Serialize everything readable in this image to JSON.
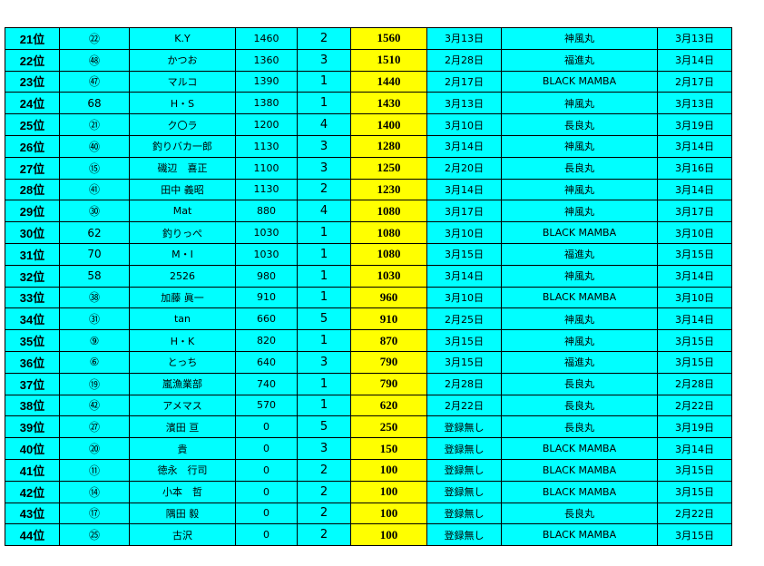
{
  "colors": {
    "cell": "#00ffff",
    "total": "#ffff00"
  },
  "rows": [
    [
      "21位",
      "㉒",
      "K.Y",
      "1460",
      "2",
      "1560",
      "3月13日",
      "神風丸",
      "3月13日"
    ],
    [
      "22位",
      "㊽",
      "かつお",
      "1360",
      "3",
      "1510",
      "2月28日",
      "福進丸",
      "3月14日"
    ],
    [
      "23位",
      "㊼",
      "マルコ",
      "1390",
      "1",
      "1440",
      "2月17日",
      "BLACK MAMBA",
      "2月17日"
    ],
    [
      "24位",
      "68",
      "H・S",
      "1380",
      "1",
      "1430",
      "3月13日",
      "神風丸",
      "3月13日"
    ],
    [
      "25位",
      "㉑",
      "ク〇ラ",
      "1200",
      "4",
      "1400",
      "3月10日",
      "長良丸",
      "3月19日"
    ],
    [
      "26位",
      "㊵",
      "釣りバカ一郎",
      "1130",
      "3",
      "1280",
      "3月14日",
      "神風丸",
      "3月14日"
    ],
    [
      "27位",
      "⑮",
      "磯辺　喜正",
      "1100",
      "3",
      "1250",
      "2月20日",
      "長良丸",
      "3月16日"
    ],
    [
      "28位",
      "㊶",
      "田中 義昭",
      "1130",
      "2",
      "1230",
      "3月14日",
      "神風丸",
      "3月14日"
    ],
    [
      "29位",
      "㉚",
      "Mat",
      "880",
      "4",
      "1080",
      "3月17日",
      "神風丸",
      "3月17日"
    ],
    [
      "30位",
      "62",
      "釣りっぺ",
      "1030",
      "1",
      "1080",
      "3月10日",
      "BLACK MAMBA",
      "3月10日"
    ],
    [
      "31位",
      "70",
      "M・I",
      "1030",
      "1",
      "1080",
      "3月15日",
      "福進丸",
      "3月15日"
    ],
    [
      "32位",
      "58",
      "2526",
      "980",
      "1",
      "1030",
      "3月14日",
      "神風丸",
      "3月14日"
    ],
    [
      "33位",
      "㊳",
      "加藤 眞一",
      "910",
      "1",
      "960",
      "3月10日",
      "BLACK MAMBA",
      "3月10日"
    ],
    [
      "34位",
      "㉛",
      "tan",
      "660",
      "5",
      "910",
      "2月25日",
      "神風丸",
      "3月14日"
    ],
    [
      "35位",
      "⑨",
      "H・K",
      "820",
      "1",
      "870",
      "3月15日",
      "神風丸",
      "3月15日"
    ],
    [
      "36位",
      "⑥",
      "とっち",
      "640",
      "3",
      "790",
      "3月15日",
      "福進丸",
      "3月15日"
    ],
    [
      "37位",
      "⑲",
      "嵐漁業部",
      "740",
      "1",
      "790",
      "2月28日",
      "長良丸",
      "2月28日"
    ],
    [
      "38位",
      "㊷",
      "アメマス",
      "570",
      "1",
      "620",
      "2月22日",
      "長良丸",
      "2月22日"
    ],
    [
      "39位",
      "㉗",
      "濱田 亘",
      "0",
      "5",
      "250",
      "登録無し",
      "長良丸",
      "3月19日"
    ],
    [
      "40位",
      "⑳",
      "貴",
      "0",
      "3",
      "150",
      "登録無し",
      "BLACK MAMBA",
      "3月14日"
    ],
    [
      "41位",
      "⑪",
      "徳永　行司",
      "0",
      "2",
      "100",
      "登録無し",
      "BLACK MAMBA",
      "3月15日"
    ],
    [
      "42位",
      "⑭",
      "小本　哲",
      "0",
      "2",
      "100",
      "登録無し",
      "BLACK MAMBA",
      "3月15日"
    ],
    [
      "43位",
      "⑰",
      "隅田 毅",
      "0",
      "2",
      "100",
      "登録無し",
      "長良丸",
      "2月22日"
    ],
    [
      "44位",
      "㉕",
      "古沢",
      "0",
      "2",
      "100",
      "登録無し",
      "BLACK MAMBA",
      "3月15日"
    ]
  ]
}
